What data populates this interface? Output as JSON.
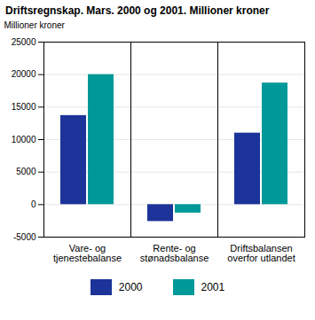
{
  "chart_data": {
    "type": "bar",
    "title": "Driftsregnskap. Mars. 2000 og 2001. Millioner kroner",
    "y_label": "Millioner kroner",
    "categories": [
      "Vare- og tjenestebalanse",
      "Rente- og stønadsbalanse",
      "Driftsbalansen overfor utlandet"
    ],
    "series": [
      {
        "name": "2000",
        "color": "#1c3399",
        "values": [
          13700,
          -2600,
          11000
        ]
      },
      {
        "name": "2001",
        "color": "#009999",
        "values": [
          20000,
          -1300,
          18700
        ]
      }
    ],
    "ylim": [
      -5000,
      25000
    ],
    "yticks": [
      -5000,
      0,
      5000,
      10000,
      15000,
      20000,
      25000
    ],
    "grid": true,
    "legend": "bottom"
  }
}
